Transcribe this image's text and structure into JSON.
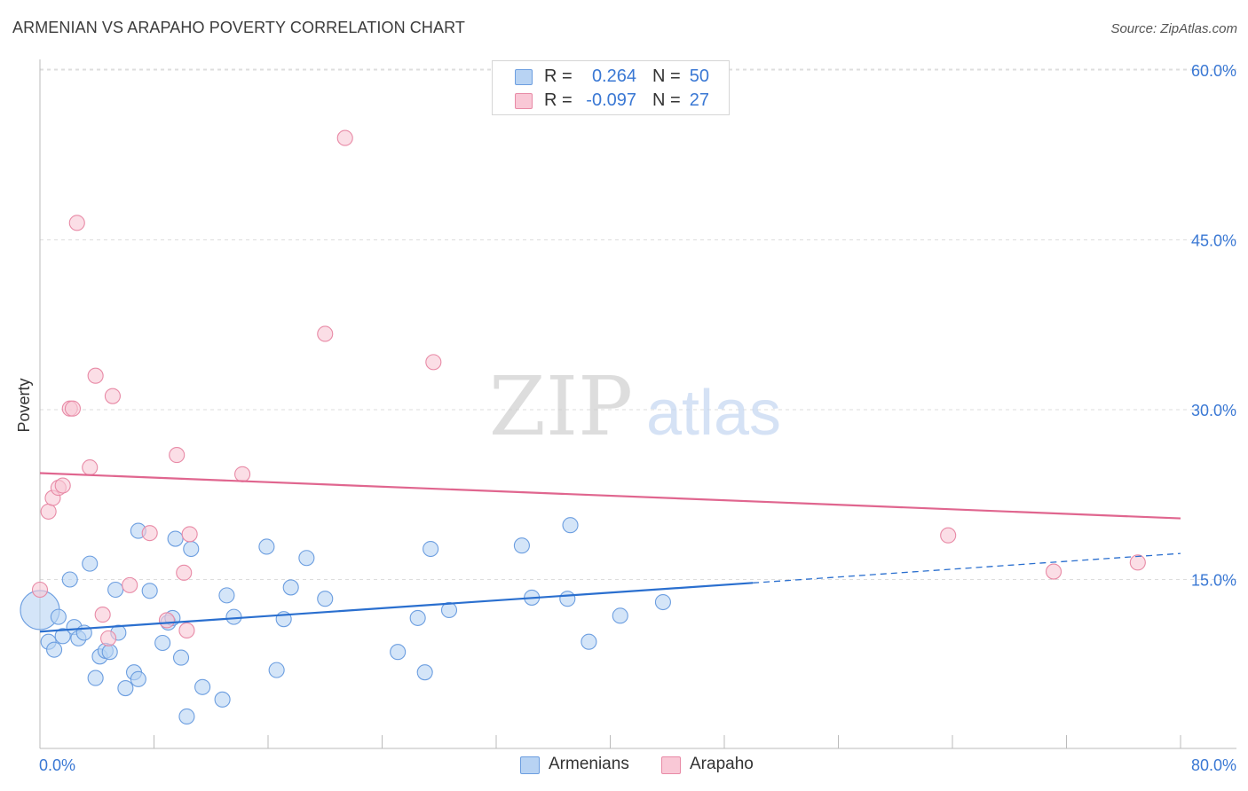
{
  "title": "ARMENIAN VS ARAPAHO POVERTY CORRELATION CHART",
  "source": "Source: ZipAtlas.com",
  "watermark": {
    "zip": "ZIP",
    "atlas": "atlas"
  },
  "legend": {
    "rows": [
      {
        "r_label": "R =",
        "r_value": "0.264",
        "n_label": "N =",
        "n_value": "50",
        "color_key": "blue"
      },
      {
        "r_label": "R =",
        "r_value": "-0.097",
        "n_label": "N =",
        "n_value": "27",
        "color_key": "pink"
      }
    ]
  },
  "bottom_legend": [
    {
      "label": "Armenians",
      "color_key": "blue"
    },
    {
      "label": "Arapaho",
      "color_key": "pink"
    }
  ],
  "colors": {
    "blue_fill": "#b8d3f3",
    "blue_stroke": "#6c9ee0",
    "blue_line": "#2a6fcf",
    "pink_fill": "#f9c8d6",
    "pink_stroke": "#e88aa6",
    "pink_line": "#e0668f",
    "tick_label": "#3a78d4",
    "grid": "#dddddd"
  },
  "chart_data": {
    "type": "scatter",
    "title": "ARMENIAN VS ARAPAHO POVERTY CORRELATION CHART",
    "xlabel": "",
    "ylabel": "Poverty",
    "xlim": [
      0,
      80
    ],
    "ylim": [
      0,
      60
    ],
    "x_tick_labels": [
      {
        "value": 0,
        "label": "0.0%"
      },
      {
        "value": 80,
        "label": "80.0%"
      }
    ],
    "y_tick_labels": [
      {
        "value": 15,
        "label": "15.0%"
      },
      {
        "value": 30,
        "label": "30.0%"
      },
      {
        "value": 45,
        "label": "45.0%"
      },
      {
        "value": 60,
        "label": "60.0%"
      }
    ],
    "x_minor_ticks": [
      0,
      8,
      16,
      24,
      32,
      40,
      48,
      56,
      64,
      72,
      80
    ],
    "grid": true,
    "legend_position": "top-center",
    "series": [
      {
        "name": "Armenians",
        "color_key": "blue",
        "R": 0.264,
        "N": 50,
        "points": [
          [
            0.0,
            12.3
          ],
          [
            0.6,
            9.5
          ],
          [
            1.0,
            8.8
          ],
          [
            1.3,
            11.7
          ],
          [
            1.6,
            10.0
          ],
          [
            2.1,
            15.0
          ],
          [
            2.4,
            10.8
          ],
          [
            2.7,
            9.8
          ],
          [
            3.1,
            10.3
          ],
          [
            3.5,
            16.4
          ],
          [
            3.9,
            6.3
          ],
          [
            4.2,
            8.2
          ],
          [
            4.6,
            8.7
          ],
          [
            4.9,
            8.6
          ],
          [
            5.3,
            14.1
          ],
          [
            5.5,
            10.3
          ],
          [
            6.0,
            5.4
          ],
          [
            6.6,
            6.8
          ],
          [
            6.9,
            6.2
          ],
          [
            7.7,
            14.0
          ],
          [
            6.9,
            19.3
          ],
          [
            8.6,
            9.4
          ],
          [
            9.0,
            11.2
          ],
          [
            9.3,
            11.6
          ],
          [
            9.5,
            18.6
          ],
          [
            9.9,
            8.1
          ],
          [
            10.3,
            2.9
          ],
          [
            10.6,
            17.7
          ],
          [
            11.4,
            5.5
          ],
          [
            12.8,
            4.4
          ],
          [
            13.1,
            13.6
          ],
          [
            13.6,
            11.7
          ],
          [
            15.9,
            17.9
          ],
          [
            16.6,
            7.0
          ],
          [
            17.1,
            11.5
          ],
          [
            17.6,
            14.3
          ],
          [
            18.7,
            16.9
          ],
          [
            20.0,
            13.3
          ],
          [
            25.1,
            8.6
          ],
          [
            26.5,
            11.6
          ],
          [
            27.0,
            6.8
          ],
          [
            27.4,
            17.7
          ],
          [
            28.7,
            12.3
          ],
          [
            33.8,
            18.0
          ],
          [
            34.5,
            13.4
          ],
          [
            37.0,
            13.3
          ],
          [
            37.2,
            19.8
          ],
          [
            38.5,
            9.5
          ],
          [
            40.7,
            11.8
          ],
          [
            43.7,
            13.0
          ]
        ],
        "trend": {
          "x": [
            0,
            50
          ],
          "y": [
            10.4,
            14.7
          ]
        },
        "trend_extension": {
          "x": [
            50,
            80
          ],
          "y": [
            14.7,
            17.3
          ]
        }
      },
      {
        "name": "Arapaho",
        "color_key": "pink",
        "R": -0.097,
        "N": 27,
        "points": [
          [
            0.0,
            14.1
          ],
          [
            0.6,
            21.0
          ],
          [
            0.9,
            22.2
          ],
          [
            1.3,
            23.1
          ],
          [
            1.6,
            23.3
          ],
          [
            2.1,
            30.1
          ],
          [
            2.3,
            30.1
          ],
          [
            2.6,
            46.5
          ],
          [
            3.5,
            24.9
          ],
          [
            3.9,
            33.0
          ],
          [
            4.4,
            11.9
          ],
          [
            4.8,
            9.8
          ],
          [
            5.1,
            31.2
          ],
          [
            6.3,
            14.5
          ],
          [
            7.7,
            19.1
          ],
          [
            8.9,
            11.4
          ],
          [
            9.6,
            26.0
          ],
          [
            10.1,
            15.6
          ],
          [
            10.3,
            10.5
          ],
          [
            10.5,
            19.0
          ],
          [
            14.2,
            24.3
          ],
          [
            20.0,
            36.7
          ],
          [
            21.4,
            54.0
          ],
          [
            27.6,
            34.2
          ],
          [
            63.7,
            18.9
          ],
          [
            71.1,
            15.7
          ],
          [
            77.0,
            16.5
          ]
        ],
        "trend": {
          "x": [
            0,
            80
          ],
          "y": [
            24.4,
            20.4
          ]
        }
      }
    ]
  }
}
